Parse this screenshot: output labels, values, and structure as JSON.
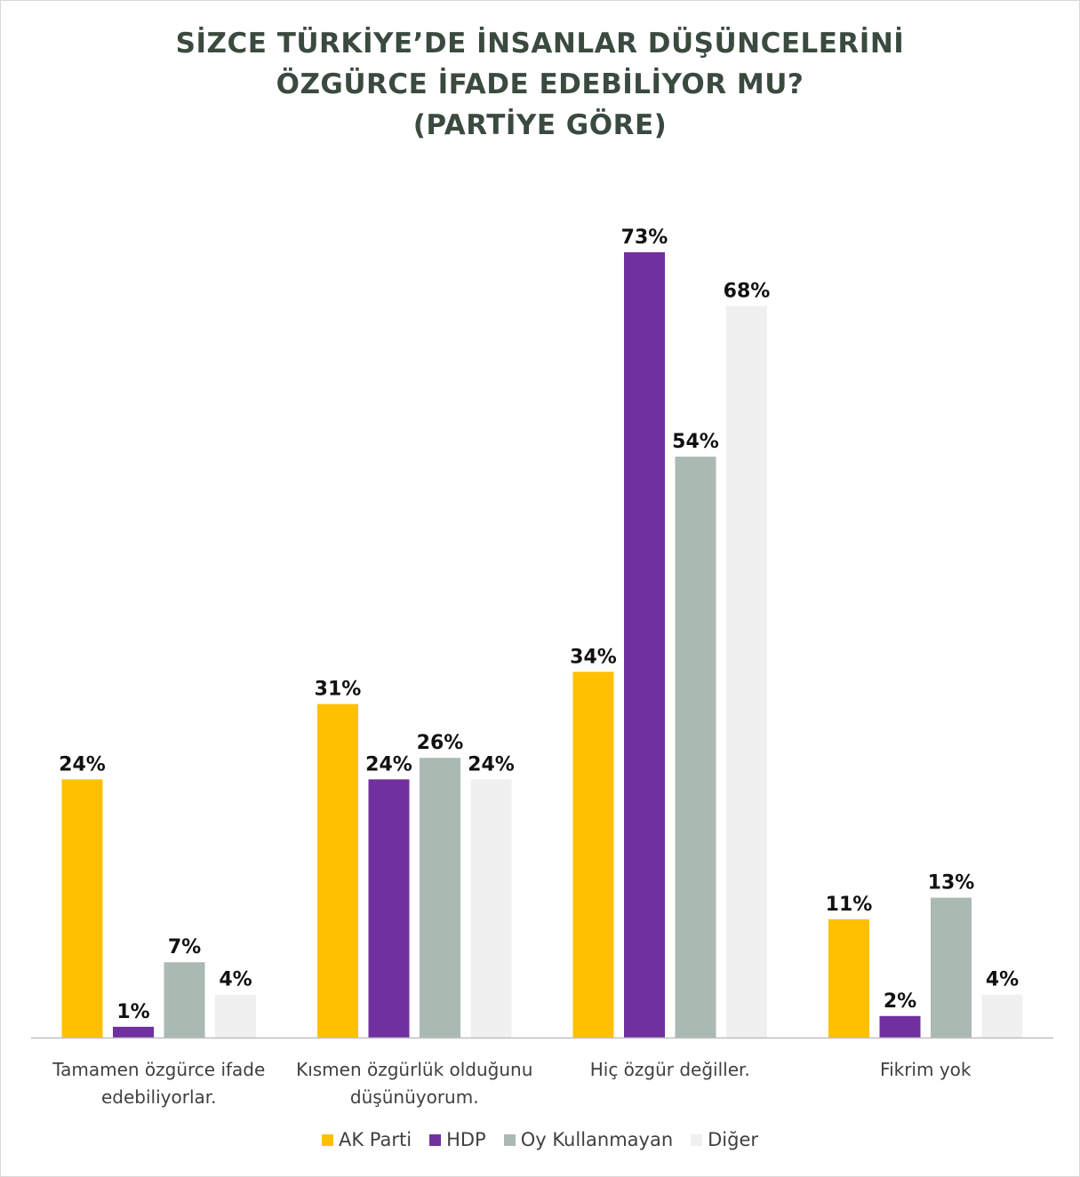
{
  "chart_data": {
    "type": "bar",
    "title_lines": [
      "SİZCE TÜRKİYE’DE İNSANLAR DÜŞÜNCELERİNİ",
      "ÖZGÜRCE İFADE EDEBİLİYOR MU?",
      "(PARTİYE GÖRE)"
    ],
    "categories": [
      [
        "Tamamen özgürce ifade",
        "edebiliyorlar."
      ],
      [
        "Kısmen özgürlük olduğunu",
        "düşünüyorum."
      ],
      [
        "Hiç özgür değiller."
      ],
      [
        "Fikrim yok"
      ]
    ],
    "series": [
      {
        "name": "AK Parti",
        "color": "#ffc000",
        "values": [
          24,
          31,
          34,
          11
        ]
      },
      {
        "name": "HDP",
        "color": "#7030a0",
        "values": [
          1,
          24,
          73,
          2
        ]
      },
      {
        "name": "Oy Kullanmayan",
        "color": "#aabab2",
        "values": [
          7,
          26,
          54,
          13
        ]
      },
      {
        "name": "Diğer",
        "color": "#f0f0f0",
        "values": [
          4,
          24,
          68,
          4
        ]
      }
    ],
    "value_suffix": "%",
    "ylim": [
      0,
      73
    ],
    "grid": false,
    "legend_position": "bottom"
  }
}
